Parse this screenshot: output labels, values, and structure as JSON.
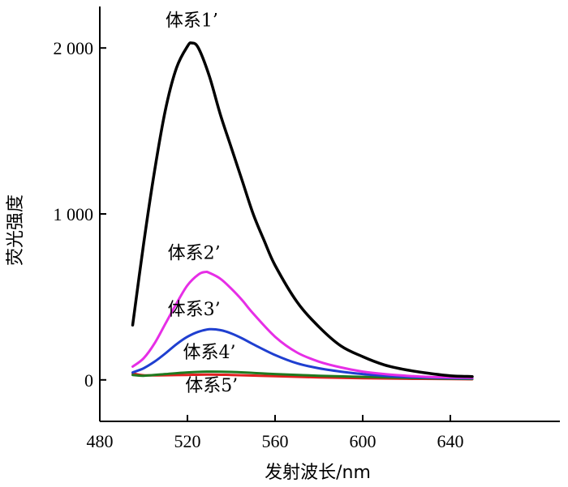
{
  "chart_data": {
    "type": "line",
    "xlabel": "发射波长/nm",
    "ylabel": "荧光强度",
    "xlim": [
      480,
      690
    ],
    "ylim": [
      -250,
      2250
    ],
    "x_ticks": [
      480,
      520,
      560,
      600,
      640
    ],
    "x_tick_labels": [
      "480",
      "520",
      "560",
      "600",
      "640"
    ],
    "y_ticks": [
      0,
      1000,
      2000
    ],
    "y_tick_labels": [
      "0",
      "1 000",
      "2 000"
    ],
    "grid": false,
    "legend": "none",
    "series": [
      {
        "name": "体系1’",
        "color": "#000000",
        "x": [
          495,
          500,
          505,
          510,
          515,
          520,
          522,
          525,
          530,
          535,
          540,
          545,
          550,
          555,
          560,
          570,
          580,
          590,
          600,
          610,
          620,
          630,
          640,
          650
        ],
        "y": [
          330,
          820,
          1260,
          1630,
          1880,
          2010,
          2030,
          2000,
          1830,
          1600,
          1400,
          1200,
          1000,
          840,
          690,
          470,
          320,
          205,
          140,
          90,
          60,
          40,
          25,
          20
        ]
      },
      {
        "name": "体系2’",
        "color": "#e62ee6",
        "x": [
          495,
          500,
          505,
          510,
          515,
          520,
          525,
          528,
          530,
          535,
          540,
          545,
          550,
          560,
          570,
          580,
          590,
          600,
          610,
          620,
          630,
          640,
          650
        ],
        "y": [
          80,
          130,
          220,
          340,
          460,
          570,
          635,
          650,
          645,
          610,
          550,
          480,
          400,
          260,
          165,
          110,
          75,
          50,
          35,
          25,
          18,
          15,
          12
        ]
      },
      {
        "name": "体系3’",
        "color": "#1f3fd0",
        "x": [
          495,
          500,
          505,
          510,
          515,
          520,
          525,
          530,
          535,
          540,
          545,
          550,
          560,
          570,
          580,
          590,
          600,
          610,
          620,
          630,
          640,
          650
        ],
        "y": [
          45,
          70,
          110,
          160,
          215,
          260,
          290,
          305,
          300,
          280,
          250,
          215,
          150,
          100,
          70,
          50,
          35,
          25,
          18,
          14,
          11,
          10
        ]
      },
      {
        "name": "体系4’",
        "color": "#1f7a1f",
        "x": [
          495,
          500,
          510,
          520,
          530,
          540,
          550,
          560,
          580,
          600,
          620,
          640,
          650
        ],
        "y": [
          30,
          25,
          35,
          45,
          50,
          48,
          42,
          35,
          25,
          18,
          12,
          8,
          6
        ]
      },
      {
        "name": "体系5’",
        "color": "#e02020",
        "x": [
          495,
          500,
          510,
          520,
          530,
          540,
          550,
          560,
          580,
          600,
          620,
          640,
          650
        ],
        "y": [
          40,
          28,
          28,
          30,
          32,
          30,
          26,
          22,
          15,
          10,
          7,
          5,
          4
        ]
      }
    ],
    "annotations": [
      {
        "text": "体系1’",
        "x": 522,
        "y": 2130
      },
      {
        "text": "体系2’",
        "x": 523,
        "y": 730
      },
      {
        "text": "体系3’",
        "x": 523,
        "y": 390
      },
      {
        "text": "体系4’",
        "x": 530,
        "y": 130
      },
      {
        "text": "体系5’",
        "x": 531,
        "y": -70
      }
    ]
  }
}
